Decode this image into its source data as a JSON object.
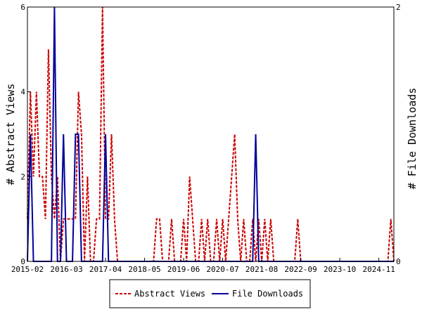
{
  "chart_data": {
    "type": "line",
    "title": "",
    "ylabel_left": "# Abstract Views",
    "ylabel_right": "# File Downloads",
    "ylim_left": [
      0,
      6
    ],
    "ylim_right": [
      0,
      2
    ],
    "yticks_left": [
      0,
      2,
      4,
      6
    ],
    "yticks_right": [
      0,
      2
    ],
    "xlim": [
      "2015-02",
      "2025-04"
    ],
    "xtick_labels": [
      "2015-02",
      "2016-03",
      "2017-04",
      "2018-05",
      "2019-06",
      "2020-07",
      "2021-08",
      "2022-09",
      "2023-10",
      "2024-11"
    ],
    "legend": {
      "position": "bottom-center",
      "entries": [
        "Abstract Views",
        "File Downloads"
      ]
    },
    "grid": false,
    "series": [
      {
        "name": "Abstract Views",
        "axis": "left",
        "color": "#cc0000",
        "style": "dashed",
        "points": [
          [
            "2015-02",
            1
          ],
          [
            "2015-03",
            4
          ],
          [
            "2015-04",
            2
          ],
          [
            "2015-05",
            4
          ],
          [
            "2015-06",
            2
          ],
          [
            "2015-07",
            2
          ],
          [
            "2015-08",
            1
          ],
          [
            "2015-09",
            5
          ],
          [
            "2015-10",
            2
          ],
          [
            "2015-11",
            1
          ],
          [
            "2015-12",
            2
          ],
          [
            "2016-01",
            0
          ],
          [
            "2016-02",
            1
          ],
          [
            "2016-03",
            1
          ],
          [
            "2016-04",
            1
          ],
          [
            "2016-05",
            1
          ],
          [
            "2016-06",
            1
          ],
          [
            "2016-07",
            4
          ],
          [
            "2016-08",
            3
          ],
          [
            "2016-09",
            0
          ],
          [
            "2016-10",
            2
          ],
          [
            "2016-11",
            0
          ],
          [
            "2016-12",
            0
          ],
          [
            "2017-01",
            1
          ],
          [
            "2017-02",
            1
          ],
          [
            "2017-03",
            6
          ],
          [
            "2017-04",
            1
          ],
          [
            "2017-05",
            1
          ],
          [
            "2017-06",
            3
          ],
          [
            "2017-07",
            1
          ],
          [
            "2017-08",
            0
          ],
          [
            "2017-09",
            0
          ],
          [
            "2017-10",
            0
          ],
          [
            "2017-11",
            0
          ],
          [
            "2017-12",
            0
          ],
          [
            "2018-01",
            0
          ],
          [
            "2018-02",
            0
          ],
          [
            "2018-03",
            0
          ],
          [
            "2018-04",
            0
          ],
          [
            "2018-05",
            0
          ],
          [
            "2018-06",
            0
          ],
          [
            "2018-07",
            0
          ],
          [
            "2018-08",
            0
          ],
          [
            "2018-09",
            1
          ],
          [
            "2018-10",
            1
          ],
          [
            "2018-11",
            0
          ],
          [
            "2018-12",
            0
          ],
          [
            "2019-01",
            0
          ],
          [
            "2019-02",
            1
          ],
          [
            "2019-03",
            0
          ],
          [
            "2019-04",
            0
          ],
          [
            "2019-05",
            0
          ],
          [
            "2019-06",
            1
          ],
          [
            "2019-07",
            0
          ],
          [
            "2019-08",
            2
          ],
          [
            "2019-09",
            1
          ],
          [
            "2019-10",
            0
          ],
          [
            "2019-11",
            0
          ],
          [
            "2019-12",
            1
          ],
          [
            "2020-01",
            0
          ],
          [
            "2020-02",
            1
          ],
          [
            "2020-03",
            0
          ],
          [
            "2020-04",
            0
          ],
          [
            "2020-05",
            1
          ],
          [
            "2020-06",
            0
          ],
          [
            "2020-07",
            1
          ],
          [
            "2020-08",
            0
          ],
          [
            "2020-09",
            1
          ],
          [
            "2020-10",
            2
          ],
          [
            "2020-11",
            3
          ],
          [
            "2020-12",
            1
          ],
          [
            "2021-01",
            0
          ],
          [
            "2021-02",
            1
          ],
          [
            "2021-03",
            0
          ],
          [
            "2021-04",
            0
          ],
          [
            "2021-05",
            1
          ],
          [
            "2021-06",
            0
          ],
          [
            "2021-07",
            1
          ],
          [
            "2021-08",
            0
          ],
          [
            "2021-09",
            1
          ],
          [
            "2021-10",
            0
          ],
          [
            "2021-11",
            1
          ],
          [
            "2021-12",
            0
          ],
          [
            "2022-01",
            0
          ],
          [
            "2022-02",
            0
          ],
          [
            "2022-03",
            0
          ],
          [
            "2022-04",
            0
          ],
          [
            "2022-05",
            0
          ],
          [
            "2022-06",
            0
          ],
          [
            "2022-07",
            0
          ],
          [
            "2022-08",
            1
          ],
          [
            "2022-09",
            0
          ],
          [
            "2022-10",
            0
          ],
          [
            "2022-11",
            0
          ],
          [
            "2022-12",
            0
          ],
          [
            "2023-01",
            0
          ],
          [
            "2023-02",
            0
          ],
          [
            "2023-03",
            0
          ],
          [
            "2023-04",
            0
          ],
          [
            "2023-05",
            0
          ],
          [
            "2023-06",
            0
          ],
          [
            "2023-07",
            0
          ],
          [
            "2023-08",
            0
          ],
          [
            "2023-09",
            0
          ],
          [
            "2023-10",
            0
          ],
          [
            "2023-11",
            0
          ],
          [
            "2023-12",
            0
          ],
          [
            "2024-01",
            0
          ],
          [
            "2024-02",
            0
          ],
          [
            "2024-03",
            0
          ],
          [
            "2024-04",
            0
          ],
          [
            "2024-05",
            0
          ],
          [
            "2024-06",
            0
          ],
          [
            "2024-07",
            0
          ],
          [
            "2024-08",
            0
          ],
          [
            "2024-09",
            0
          ],
          [
            "2024-10",
            0
          ],
          [
            "2024-11",
            0
          ],
          [
            "2024-12",
            0
          ],
          [
            "2025-01",
            0
          ],
          [
            "2025-02",
            0
          ],
          [
            "2025-03",
            1
          ],
          [
            "2025-04",
            0
          ]
        ]
      },
      {
        "name": "File Downloads",
        "axis": "right",
        "color": "#000099",
        "style": "solid",
        "points": [
          [
            "2015-02",
            0
          ],
          [
            "2015-03",
            1
          ],
          [
            "2015-04",
            0
          ],
          [
            "2015-05",
            0
          ],
          [
            "2015-06",
            0
          ],
          [
            "2015-07",
            0
          ],
          [
            "2015-08",
            0
          ],
          [
            "2015-09",
            0
          ],
          [
            "2015-10",
            0
          ],
          [
            "2015-11",
            2
          ],
          [
            "2015-12",
            0
          ],
          [
            "2016-01",
            0
          ],
          [
            "2016-02",
            1
          ],
          [
            "2016-03",
            0
          ],
          [
            "2016-04",
            0
          ],
          [
            "2016-05",
            0
          ],
          [
            "2016-06",
            1
          ],
          [
            "2016-07",
            1
          ],
          [
            "2016-08",
            0
          ],
          [
            "2016-09",
            0
          ],
          [
            "2016-10",
            0
          ],
          [
            "2016-11",
            0
          ],
          [
            "2016-12",
            0
          ],
          [
            "2017-01",
            0
          ],
          [
            "2017-02",
            0
          ],
          [
            "2017-03",
            0
          ],
          [
            "2017-04",
            1
          ],
          [
            "2017-05",
            0
          ],
          [
            "2017-06",
            0
          ],
          [
            "2017-07",
            0
          ],
          [
            "2017-08",
            0
          ],
          [
            "2017-09",
            0
          ],
          [
            "2017-10",
            0
          ],
          [
            "2017-11",
            0
          ],
          [
            "2017-12",
            0
          ],
          [
            "2018-01",
            0
          ],
          [
            "2018-02",
            0
          ],
          [
            "2018-03",
            0
          ],
          [
            "2018-04",
            0
          ],
          [
            "2018-05",
            0
          ],
          [
            "2018-06",
            0
          ],
          [
            "2018-07",
            0
          ],
          [
            "2018-08",
            0
          ],
          [
            "2018-09",
            0
          ],
          [
            "2018-10",
            0
          ],
          [
            "2018-11",
            0
          ],
          [
            "2018-12",
            0
          ],
          [
            "2019-01",
            0
          ],
          [
            "2019-02",
            0
          ],
          [
            "2019-03",
            0
          ],
          [
            "2019-04",
            0
          ],
          [
            "2019-05",
            0
          ],
          [
            "2019-06",
            0
          ],
          [
            "2019-07",
            0
          ],
          [
            "2019-08",
            0
          ],
          [
            "2019-09",
            0
          ],
          [
            "2019-10",
            0
          ],
          [
            "2019-11",
            0
          ],
          [
            "2019-12",
            0
          ],
          [
            "2020-01",
            0
          ],
          [
            "2020-02",
            0
          ],
          [
            "2020-03",
            0
          ],
          [
            "2020-04",
            0
          ],
          [
            "2020-05",
            0
          ],
          [
            "2020-06",
            0
          ],
          [
            "2020-07",
            0
          ],
          [
            "2020-08",
            0
          ],
          [
            "2020-09",
            0
          ],
          [
            "2020-10",
            0
          ],
          [
            "2020-11",
            0
          ],
          [
            "2020-12",
            0
          ],
          [
            "2021-01",
            0
          ],
          [
            "2021-02",
            0
          ],
          [
            "2021-03",
            0
          ],
          [
            "2021-04",
            0
          ],
          [
            "2021-05",
            0
          ],
          [
            "2021-06",
            1
          ],
          [
            "2021-07",
            0
          ],
          [
            "2021-08",
            0
          ],
          [
            "2021-09",
            0
          ],
          [
            "2021-10",
            0
          ],
          [
            "2021-11",
            0
          ],
          [
            "2021-12",
            0
          ],
          [
            "2022-01",
            0
          ],
          [
            "2022-02",
            0
          ],
          [
            "2022-03",
            0
          ],
          [
            "2022-04",
            0
          ],
          [
            "2022-05",
            0
          ],
          [
            "2022-06",
            0
          ],
          [
            "2022-07",
            0
          ],
          [
            "2022-08",
            0
          ],
          [
            "2022-09",
            0
          ],
          [
            "2022-10",
            0
          ],
          [
            "2022-11",
            0
          ],
          [
            "2022-12",
            0
          ],
          [
            "2023-01",
            0
          ],
          [
            "2023-02",
            0
          ],
          [
            "2023-03",
            0
          ],
          [
            "2023-04",
            0
          ],
          [
            "2023-05",
            0
          ],
          [
            "2023-06",
            0
          ],
          [
            "2023-07",
            0
          ],
          [
            "2023-08",
            0
          ],
          [
            "2023-09",
            0
          ],
          [
            "2023-10",
            0
          ],
          [
            "2023-11",
            0
          ],
          [
            "2023-12",
            0
          ],
          [
            "2024-01",
            0
          ],
          [
            "2024-02",
            0
          ],
          [
            "2024-03",
            0
          ],
          [
            "2024-04",
            0
          ],
          [
            "2024-05",
            0
          ],
          [
            "2024-06",
            0
          ],
          [
            "2024-07",
            0
          ],
          [
            "2024-08",
            0
          ],
          [
            "2024-09",
            0
          ],
          [
            "2024-10",
            0
          ],
          [
            "2024-11",
            0
          ],
          [
            "2024-12",
            0
          ],
          [
            "2025-01",
            0
          ],
          [
            "2025-02",
            0
          ],
          [
            "2025-03",
            0
          ],
          [
            "2025-04",
            0
          ]
        ]
      }
    ]
  }
}
